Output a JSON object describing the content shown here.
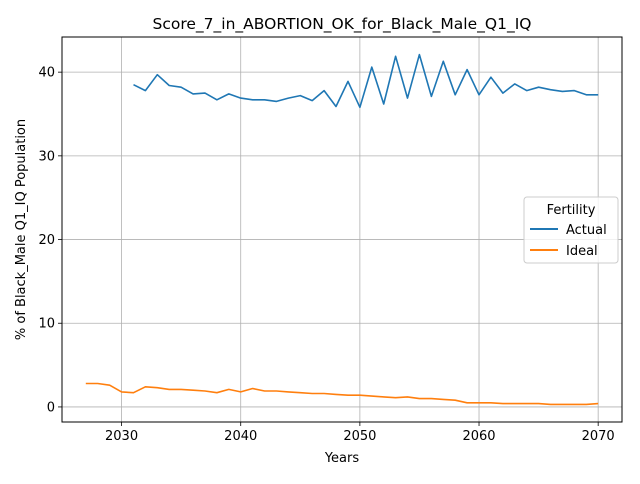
{
  "chart_data": {
    "type": "line",
    "title": "Score_7_in_ABORTION_OK_for_Black_Male_Q1_IQ",
    "xlabel": "Years",
    "ylabel": "% of Black_Male Q1_IQ Population",
    "xlim": [
      2025,
      2072
    ],
    "ylim": [
      -1.8,
      44.2
    ],
    "xticks": [
      2030,
      2040,
      2050,
      2060,
      2070
    ],
    "yticks": [
      0,
      10,
      20,
      30,
      40
    ],
    "grid": true,
    "legend": {
      "title": "Fertility",
      "placement": "center-right"
    },
    "series": [
      {
        "name": "Actual",
        "color": "#1f77b4",
        "x": [
          2031,
          2032,
          2033,
          2034,
          2035,
          2036,
          2037,
          2038,
          2039,
          2040,
          2041,
          2042,
          2043,
          2044,
          2045,
          2046,
          2047,
          2048,
          2049,
          2050,
          2051,
          2052,
          2053,
          2054,
          2055,
          2056,
          2057,
          2058,
          2059,
          2060,
          2061,
          2062,
          2063,
          2064,
          2065,
          2066,
          2067,
          2068,
          2069,
          2070
        ],
        "values": [
          38.5,
          37.8,
          39.7,
          38.4,
          38.2,
          37.4,
          37.5,
          36.7,
          37.4,
          36.9,
          36.7,
          36.7,
          36.5,
          36.9,
          37.2,
          36.6,
          37.8,
          35.9,
          38.9,
          35.8,
          40.6,
          36.2,
          41.9,
          36.9,
          42.1,
          37.1,
          41.3,
          37.3,
          40.3,
          37.3,
          39.4,
          37.5,
          38.6,
          37.8,
          38.2,
          37.9,
          37.7,
          37.8,
          37.3,
          37.3
        ]
      },
      {
        "name": "Ideal",
        "color": "#ff7f0e",
        "x": [
          2027,
          2028,
          2029,
          2030,
          2031,
          2032,
          2033,
          2034,
          2035,
          2036,
          2037,
          2038,
          2039,
          2040,
          2041,
          2042,
          2043,
          2044,
          2045,
          2046,
          2047,
          2048,
          2049,
          2050,
          2051,
          2052,
          2053,
          2054,
          2055,
          2056,
          2057,
          2058,
          2059,
          2060,
          2061,
          2062,
          2063,
          2064,
          2065,
          2066,
          2067,
          2068,
          2069,
          2070
        ],
        "values": [
          2.8,
          2.8,
          2.6,
          1.8,
          1.7,
          2.4,
          2.3,
          2.1,
          2.1,
          2.0,
          1.9,
          1.7,
          2.1,
          1.8,
          2.2,
          1.9,
          1.9,
          1.8,
          1.7,
          1.6,
          1.6,
          1.5,
          1.4,
          1.4,
          1.3,
          1.2,
          1.1,
          1.2,
          1.0,
          1.0,
          0.9,
          0.8,
          0.5,
          0.5,
          0.5,
          0.4,
          0.4,
          0.4,
          0.4,
          0.3,
          0.3,
          0.3,
          0.3,
          0.4
        ]
      }
    ]
  }
}
